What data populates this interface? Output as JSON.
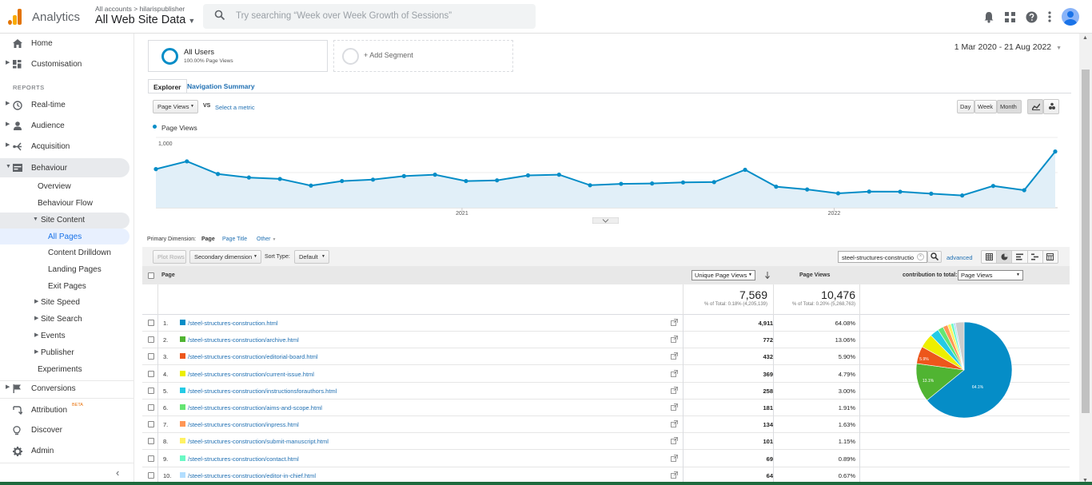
{
  "header": {
    "app_name": "Analytics",
    "breadcrumb_account": "All accounts",
    "breadcrumb_separator": ">",
    "breadcrumb_property": "hilarispublisher",
    "view_name": "All Web Site Data",
    "search_placeholder": "Try searching “Week over Week Growth of Sessions”"
  },
  "sidebar": {
    "home": "Home",
    "customisation": "Customisation",
    "reports_heading": "REPORTS",
    "realtime": "Real-time",
    "audience": "Audience",
    "acquisition": "Acquisition",
    "behaviour": "Behaviour",
    "overview": "Overview",
    "behaviour_flow": "Behaviour Flow",
    "site_content": "Site Content",
    "all_pages": "All Pages",
    "content_drilldown": "Content Drilldown",
    "landing_pages": "Landing Pages",
    "exit_pages": "Exit Pages",
    "site_speed": "Site Speed",
    "site_search": "Site Search",
    "events": "Events",
    "publisher": "Publisher",
    "experiments": "Experiments",
    "conversions": "Conversions",
    "attribution": "Attribution",
    "attribution_badge": "BETA",
    "discover": "Discover",
    "admin": "Admin"
  },
  "segments": {
    "all_users": "All Users",
    "all_users_sub": "100.00% Page Views",
    "add_segment": "+ Add Segment"
  },
  "date_range": "1 Mar 2020 - 21 Aug 2022",
  "tabs": {
    "explorer": "Explorer",
    "navigation_summary": "Navigation Summary"
  },
  "chart_controls": {
    "metric": "Page Views",
    "vs": "VS",
    "select_metric": "Select a metric",
    "day": "Day",
    "week": "Week",
    "month": "Month"
  },
  "chart_data": {
    "type": "area",
    "series": [
      {
        "name": "Page Views",
        "values": [
          550,
          660,
          480,
          430,
          410,
          315,
          380,
          400,
          450,
          470,
          380,
          390,
          460,
          470,
          320,
          340,
          345,
          360,
          365,
          540,
          300,
          260,
          205,
          230,
          228,
          200,
          175,
          310,
          250,
          800
        ]
      }
    ],
    "y_ticks": [
      "1,000",
      "500"
    ],
    "x_ticks": [
      "2021",
      "2022"
    ],
    "ylim": [
      0,
      1000
    ],
    "grid": true,
    "color": "#058dc7"
  },
  "dimension_bar": {
    "label": "Primary Dimension:",
    "page": "Page",
    "page_title": "Page Title",
    "other": "Other"
  },
  "table_controls": {
    "plot_rows": "Plot Rows",
    "secondary_dimension": "Secondary dimension",
    "sort_type_label": "Sort Type:",
    "sort_type": "Default",
    "filter_value": "steel-structures-constructio",
    "advanced": "advanced"
  },
  "table": {
    "col_page": "Page",
    "col_unique": "Unique Page Views",
    "col_pageviews": "Page Views",
    "contribution_label": "contribution to total:",
    "contribution_metric": "Page Views",
    "totals": {
      "unique": "7,569",
      "unique_pct": "% of Total: 0.18% (4,205,139)",
      "pageviews": "10,476",
      "pageviews_pct": "% of Total: 0.20% (5,268,763)"
    },
    "rows": [
      {
        "n": "1.",
        "page": "/steel-structures-construction.html",
        "unique": "4,911",
        "pv_pct": "64.08%",
        "color": "#058dc7"
      },
      {
        "n": "2.",
        "page": "/steel-structures-construction/archive.html",
        "unique": "772",
        "pv_pct": "13.06%",
        "color": "#50b432"
      },
      {
        "n": "3.",
        "page": "/steel-structures-construction/editorial-board.html",
        "unique": "432",
        "pv_pct": "5.90%",
        "color": "#ed561b"
      },
      {
        "n": "4.",
        "page": "/steel-structures-construction/current-issue.html",
        "unique": "369",
        "pv_pct": "4.79%",
        "color": "#edef00"
      },
      {
        "n": "5.",
        "page": "/steel-structures-construction/instructionsforauthors.html",
        "unique": "258",
        "pv_pct": "3.00%",
        "color": "#24cbe5"
      },
      {
        "n": "6.",
        "page": "/steel-structures-construction/aims-and-scope.html",
        "unique": "181",
        "pv_pct": "1.91%",
        "color": "#64e572"
      },
      {
        "n": "7.",
        "page": "/steel-structures-construction/inpress.html",
        "unique": "134",
        "pv_pct": "1.63%",
        "color": "#ff9655"
      },
      {
        "n": "8.",
        "page": "/steel-structures-construction/submit-manuscript.html",
        "unique": "101",
        "pv_pct": "1.15%",
        "color": "#fff263"
      },
      {
        "n": "9.",
        "page": "/steel-structures-construction/contact.html",
        "unique": "69",
        "pv_pct": "0.89%",
        "color": "#6af9c4"
      },
      {
        "n": "10.",
        "page": "/steel-structures-construction/editor-in-chief.html",
        "unique": "64",
        "pv_pct": "0.67%",
        "color": "#b2deff"
      }
    ],
    "pie_labels": {
      "slice1": "64.1%",
      "slice2": "13.1%",
      "slice3": "5.9%"
    },
    "pie_other_pct": 2.92,
    "pie_other_color": "#cccccc"
  }
}
